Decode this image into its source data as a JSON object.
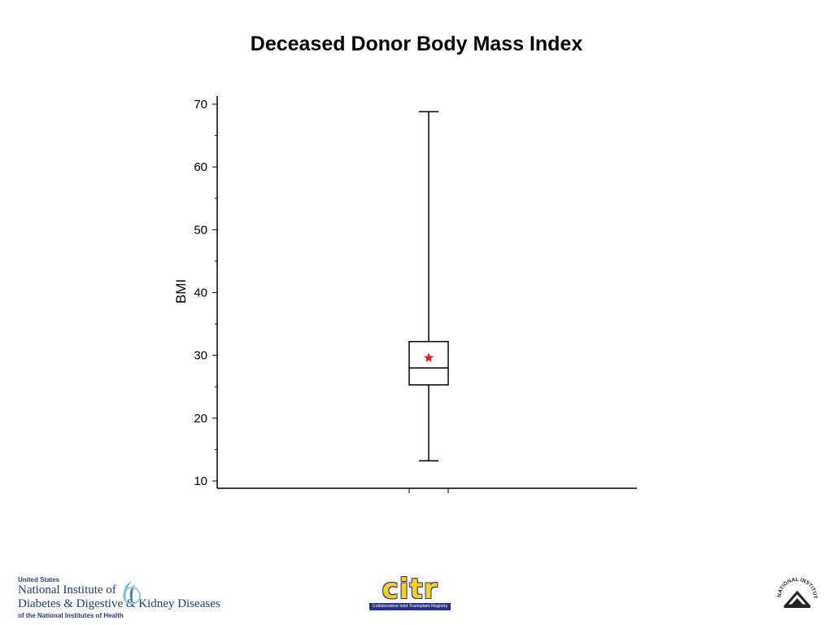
{
  "page": {
    "title": "Deceased Donor Body Mass Index"
  },
  "chart_data": {
    "type": "box",
    "title": "Deceased Donor Body Mass Index",
    "xlabel": "",
    "ylabel": "BMI",
    "ylim": [
      10,
      70
    ],
    "yticks": [
      10,
      20,
      30,
      40,
      50,
      60,
      70
    ],
    "ytick_labels": [
      "10",
      "20",
      "30",
      "40",
      "50",
      "60",
      "70"
    ],
    "minor_ticks": [
      15,
      25,
      35,
      45,
      55,
      65
    ],
    "grid": false,
    "legend": "none",
    "box": {
      "min": 13.2,
      "q1": 25.3,
      "median": 28.0,
      "q3": 32.2,
      "max": 68.8,
      "mean": 29.6
    },
    "mean_marker": "star",
    "colors": {
      "box_line": "#000000",
      "mean_marker": "#e31b1b"
    }
  },
  "footer": {
    "niddk": {
      "line_top": "United States",
      "line1": "National Institute of",
      "line2": "Diabetes & Digestive & Kidney Diseases",
      "line_bottom": "of the National Institutes of Health"
    },
    "citr": {
      "wordmark": "citr",
      "tagline": "Collaborative Islet Transplant Registry"
    },
    "nih": {
      "seal_text": "NATIONAL INSTITUTES OF HEALTH"
    }
  }
}
